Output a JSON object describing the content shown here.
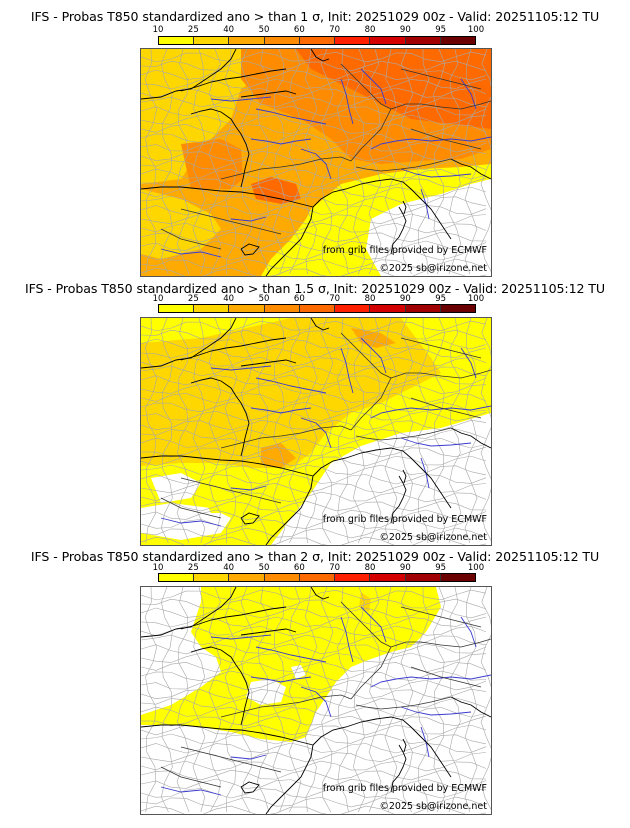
{
  "colorbar": {
    "ticks": [
      "10",
      "25",
      "40",
      "50",
      "60",
      "70",
      "80",
      "90",
      "95",
      "100"
    ],
    "colors": [
      "#ffff00",
      "#ffd700",
      "#ffaa00",
      "#ff8c00",
      "#ff6a00",
      "#ff2000",
      "#d40000",
      "#a00000",
      "#6a0000"
    ]
  },
  "panels": [
    {
      "title": "IFS - Probas T850  standardized ano > than 1 σ, Init: 20251029 00z - Valid: 20251105:12 TU",
      "threshold_sigma": 1,
      "credit_source": "from grib files provided by ECMWF",
      "credit_copyright": "©2025 sb@irizone.net"
    },
    {
      "title": "IFS - Probas T850  standardized ano > than 1.5 σ, Init: 20251029 00z - Valid: 20251105:12 TU",
      "threshold_sigma": 1.5,
      "credit_source": "from grib files provided by ECMWF",
      "credit_copyright": "©2025 sb@irizone.net"
    },
    {
      "title": "IFS - Probas T850  standardized ano > than 2 σ, Init: 20251029 00z - Valid: 20251105:12 TU",
      "threshold_sigma": 2,
      "credit_source": "from grib files provided by ECMWF",
      "credit_copyright": "©2025 sb@irizone.net"
    }
  ]
}
